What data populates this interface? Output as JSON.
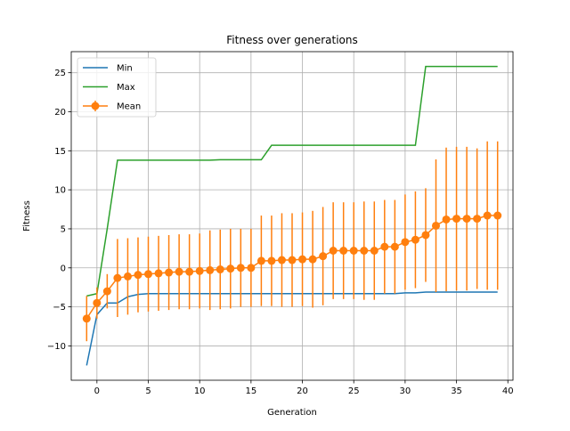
{
  "chart_data": {
    "type": "line",
    "title": "Fitness over generations",
    "xlabel": "Generation",
    "ylabel": "Fitness",
    "xlim": [
      -2.5,
      40.5
    ],
    "ylim": [
      -14.4,
      27.7
    ],
    "xticks": [
      0,
      5,
      10,
      15,
      20,
      25,
      30,
      35,
      40
    ],
    "yticks": [
      -10,
      -5,
      0,
      5,
      10,
      15,
      20,
      25
    ],
    "grid": true,
    "legend_position": "top-left",
    "x": [
      -1,
      0,
      1,
      2,
      3,
      4,
      5,
      6,
      7,
      8,
      9,
      10,
      11,
      12,
      13,
      14,
      15,
      16,
      17,
      18,
      19,
      20,
      21,
      22,
      23,
      24,
      25,
      26,
      27,
      28,
      29,
      30,
      31,
      32,
      33,
      34,
      35,
      36,
      37,
      38,
      39
    ],
    "series": [
      {
        "name": "Min",
        "color": "#1f77b4",
        "values": [
          -12.5,
          -6.0,
          -4.5,
          -4.5,
          -3.7,
          -3.4,
          -3.3,
          -3.3,
          -3.3,
          -3.3,
          -3.3,
          -3.3,
          -3.3,
          -3.3,
          -3.3,
          -3.3,
          -3.3,
          -3.3,
          -3.3,
          -3.3,
          -3.3,
          -3.3,
          -3.3,
          -3.3,
          -3.3,
          -3.3,
          -3.3,
          -3.3,
          -3.3,
          -3.3,
          -3.3,
          -3.2,
          -3.2,
          -3.1,
          -3.1,
          -3.1,
          -3.1,
          -3.1,
          -3.1,
          -3.1,
          -3.1
        ]
      },
      {
        "name": "Max",
        "color": "#2ca02c",
        "values": [
          -3.6,
          -3.3,
          5.0,
          13.8,
          13.8,
          13.8,
          13.8,
          13.8,
          13.8,
          13.8,
          13.8,
          13.8,
          13.8,
          13.85,
          13.85,
          13.85,
          13.85,
          13.85,
          15.7,
          15.7,
          15.7,
          15.7,
          15.7,
          15.7,
          15.7,
          15.7,
          15.7,
          15.7,
          15.7,
          15.7,
          15.7,
          15.7,
          15.7,
          25.8,
          25.8,
          25.8,
          25.8,
          25.8,
          25.8,
          25.8,
          25.8
        ]
      },
      {
        "name": "Mean",
        "color": "#ff7f0e",
        "values": [
          -6.5,
          -4.5,
          -3.0,
          -1.3,
          -1.1,
          -0.9,
          -0.8,
          -0.7,
          -0.6,
          -0.5,
          -0.5,
          -0.4,
          -0.3,
          -0.2,
          -0.1,
          0.0,
          0.0,
          0.9,
          0.9,
          1.0,
          1.0,
          1.1,
          1.1,
          1.5,
          2.2,
          2.2,
          2.2,
          2.2,
          2.2,
          2.7,
          2.7,
          3.3,
          3.6,
          4.2,
          5.4,
          6.2,
          6.3,
          6.3,
          6.3,
          6.7,
          6.7
        ],
        "errors": [
          2.9,
          2.0,
          2.2,
          5.0,
          4.9,
          4.8,
          4.8,
          4.8,
          4.8,
          4.8,
          4.8,
          4.8,
          5.1,
          5.1,
          5.1,
          5.0,
          5.0,
          5.8,
          5.8,
          6.0,
          6.0,
          6.0,
          6.2,
          6.3,
          6.2,
          6.2,
          6.2,
          6.3,
          6.3,
          6.0,
          6.0,
          6.1,
          6.2,
          6.0,
          8.5,
          9.2,
          9.2,
          9.2,
          9.0,
          9.5,
          9.5
        ]
      }
    ]
  }
}
